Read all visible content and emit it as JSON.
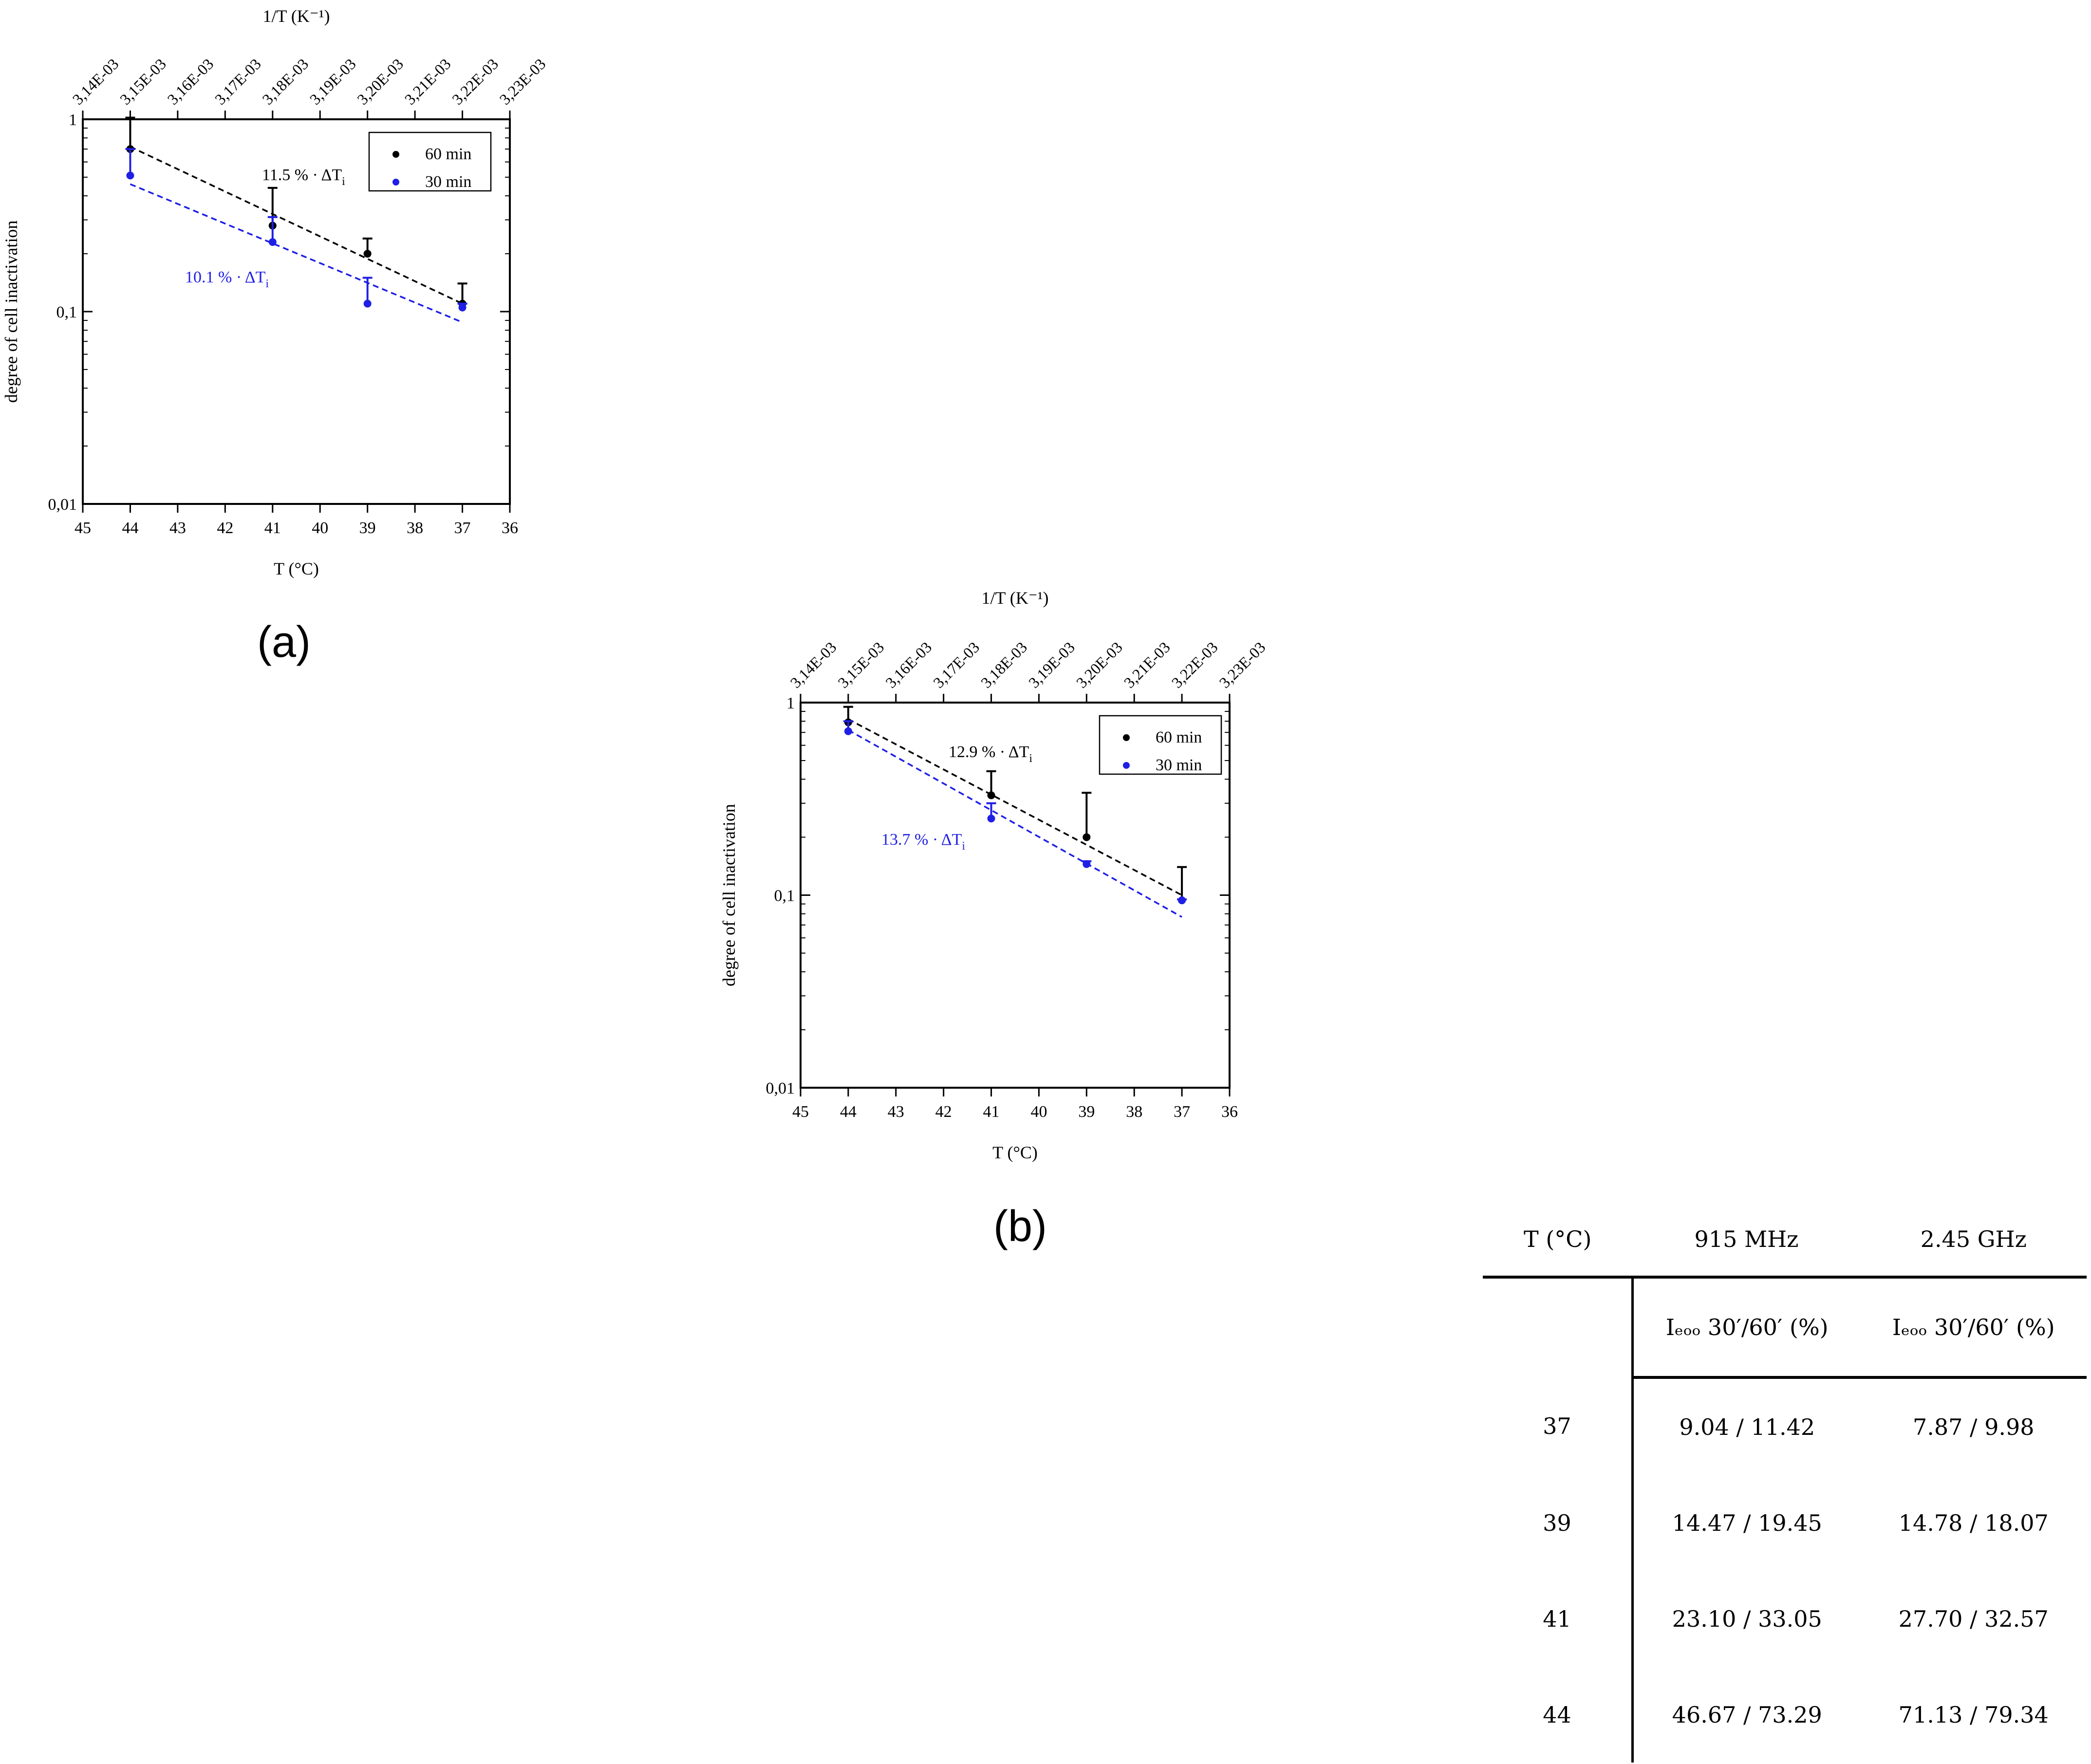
{
  "panels": [
    {
      "id": "a",
      "label": "(a)",
      "chart_data": {
        "type": "scatter",
        "title": "",
        "xlabel": "T (°C)",
        "ylabel": "degree of cell inactivation",
        "top_axis_label": "1/T (K⁻¹)",
        "x_ticks": [
          "45",
          "44",
          "43",
          "42",
          "41",
          "40",
          "39",
          "38",
          "37",
          "36"
        ],
        "x_tick_values": [
          45,
          44,
          43,
          42,
          41,
          40,
          39,
          38,
          37,
          36
        ],
        "xlim": [
          45,
          36
        ],
        "top_ticks": [
          "3,14E-03",
          "3,15E-03",
          "3,16E-03",
          "3,17E-03",
          "3,18E-03",
          "3,19E-03",
          "3,20E-03",
          "3,21E-03",
          "3,22E-03",
          "3,23E-03"
        ],
        "y_ticks": [
          "1",
          "0,1",
          "0,01"
        ],
        "y_tick_values": [
          1,
          0.1,
          0.01
        ],
        "yscale": "log",
        "ylim": [
          0.01,
          1
        ],
        "legend_position": "top-right",
        "series": [
          {
            "name": "60 min",
            "color": "#000000",
            "x": [
              44,
              41,
              39,
              37
            ],
            "y": [
              0.7,
              0.28,
              0.2,
              0.11
            ],
            "err_upper": [
              1.02,
              0.44,
              0.24,
              0.14
            ],
            "fit": {
              "x": [
                44,
                37
              ],
              "y": [
                0.72,
                0.11
              ]
            },
            "annotation": "11.5 % · ΔT",
            "annotation_sub": "i"
          },
          {
            "name": "30 min",
            "color": "#1f1fe6",
            "x": [
              44,
              41,
              39,
              37
            ],
            "y": [
              0.51,
              0.23,
              0.11,
              0.105
            ],
            "err_upper": [
              0.7,
              0.31,
              0.15,
              0.11
            ],
            "fit": {
              "x": [
                44,
                37
              ],
              "y": [
                0.46,
                0.088
              ]
            },
            "annotation": "10.1 % · ΔT",
            "annotation_sub": "i"
          }
        ]
      }
    },
    {
      "id": "b",
      "label": "(b)",
      "chart_data": {
        "type": "scatter",
        "title": "",
        "xlabel": "T (°C)",
        "ylabel": "degree of cell inactivation",
        "top_axis_label": "1/T (K⁻¹)",
        "x_ticks": [
          "45",
          "44",
          "43",
          "42",
          "41",
          "40",
          "39",
          "38",
          "37",
          "36"
        ],
        "x_tick_values": [
          45,
          44,
          43,
          42,
          41,
          40,
          39,
          38,
          37,
          36
        ],
        "xlim": [
          45,
          36
        ],
        "top_ticks": [
          "3,14E-03",
          "3,15E-03",
          "3,16E-03",
          "3,17E-03",
          "3,18E-03",
          "3,19E-03",
          "3,20E-03",
          "3,21E-03",
          "3,22E-03",
          "3,23E-03"
        ],
        "y_ticks": [
          "1",
          "0,1",
          "0,01"
        ],
        "y_tick_values": [
          1,
          0.1,
          0.01
        ],
        "yscale": "log",
        "ylim": [
          0.01,
          1
        ],
        "legend_position": "top-right",
        "series": [
          {
            "name": "60 min",
            "color": "#000000",
            "x": [
              44,
              41,
              39,
              37
            ],
            "y": [
              0.79,
              0.33,
              0.2,
              0.094
            ],
            "err_upper": [
              0.95,
              0.44,
              0.34,
              0.14
            ],
            "fit": {
              "x": [
                44,
                37
              ],
              "y": [
                0.82,
                0.1
              ]
            },
            "annotation": "12.9 % · ΔT",
            "annotation_sub": "i"
          },
          {
            "name": "30 min",
            "color": "#1f1fe6",
            "x": [
              44,
              41,
              39,
              37
            ],
            "y": [
              0.71,
              0.25,
              0.145,
              0.094
            ],
            "err_upper": [
              0.8,
              0.3,
              0.15,
              0.095
            ],
            "fit": {
              "x": [
                44,
                37
              ],
              "y": [
                0.72,
                0.077
              ]
            },
            "annotation": "13.7 % · ΔT",
            "annotation_sub": "i"
          }
        ]
      }
    }
  ],
  "table": {
    "headers": [
      "T (°C)",
      "915 MHz",
      "2.45 GHz"
    ],
    "subheaders": [
      "",
      "Iₑₒₒ 30′/60′ (%)",
      "Iₑₒₒ 30′/60′ (%)"
    ],
    "rows": [
      [
        "37",
        "9.04 / 11.42",
        "7.87 / 9.98"
      ],
      [
        "39",
        "14.47 / 19.45",
        "14.78 / 18.07"
      ],
      [
        "41",
        "23.10 / 33.05",
        "27.70 / 32.57"
      ],
      [
        "44",
        "46.67 / 73.29",
        "71.13 / 79.34"
      ]
    ]
  }
}
